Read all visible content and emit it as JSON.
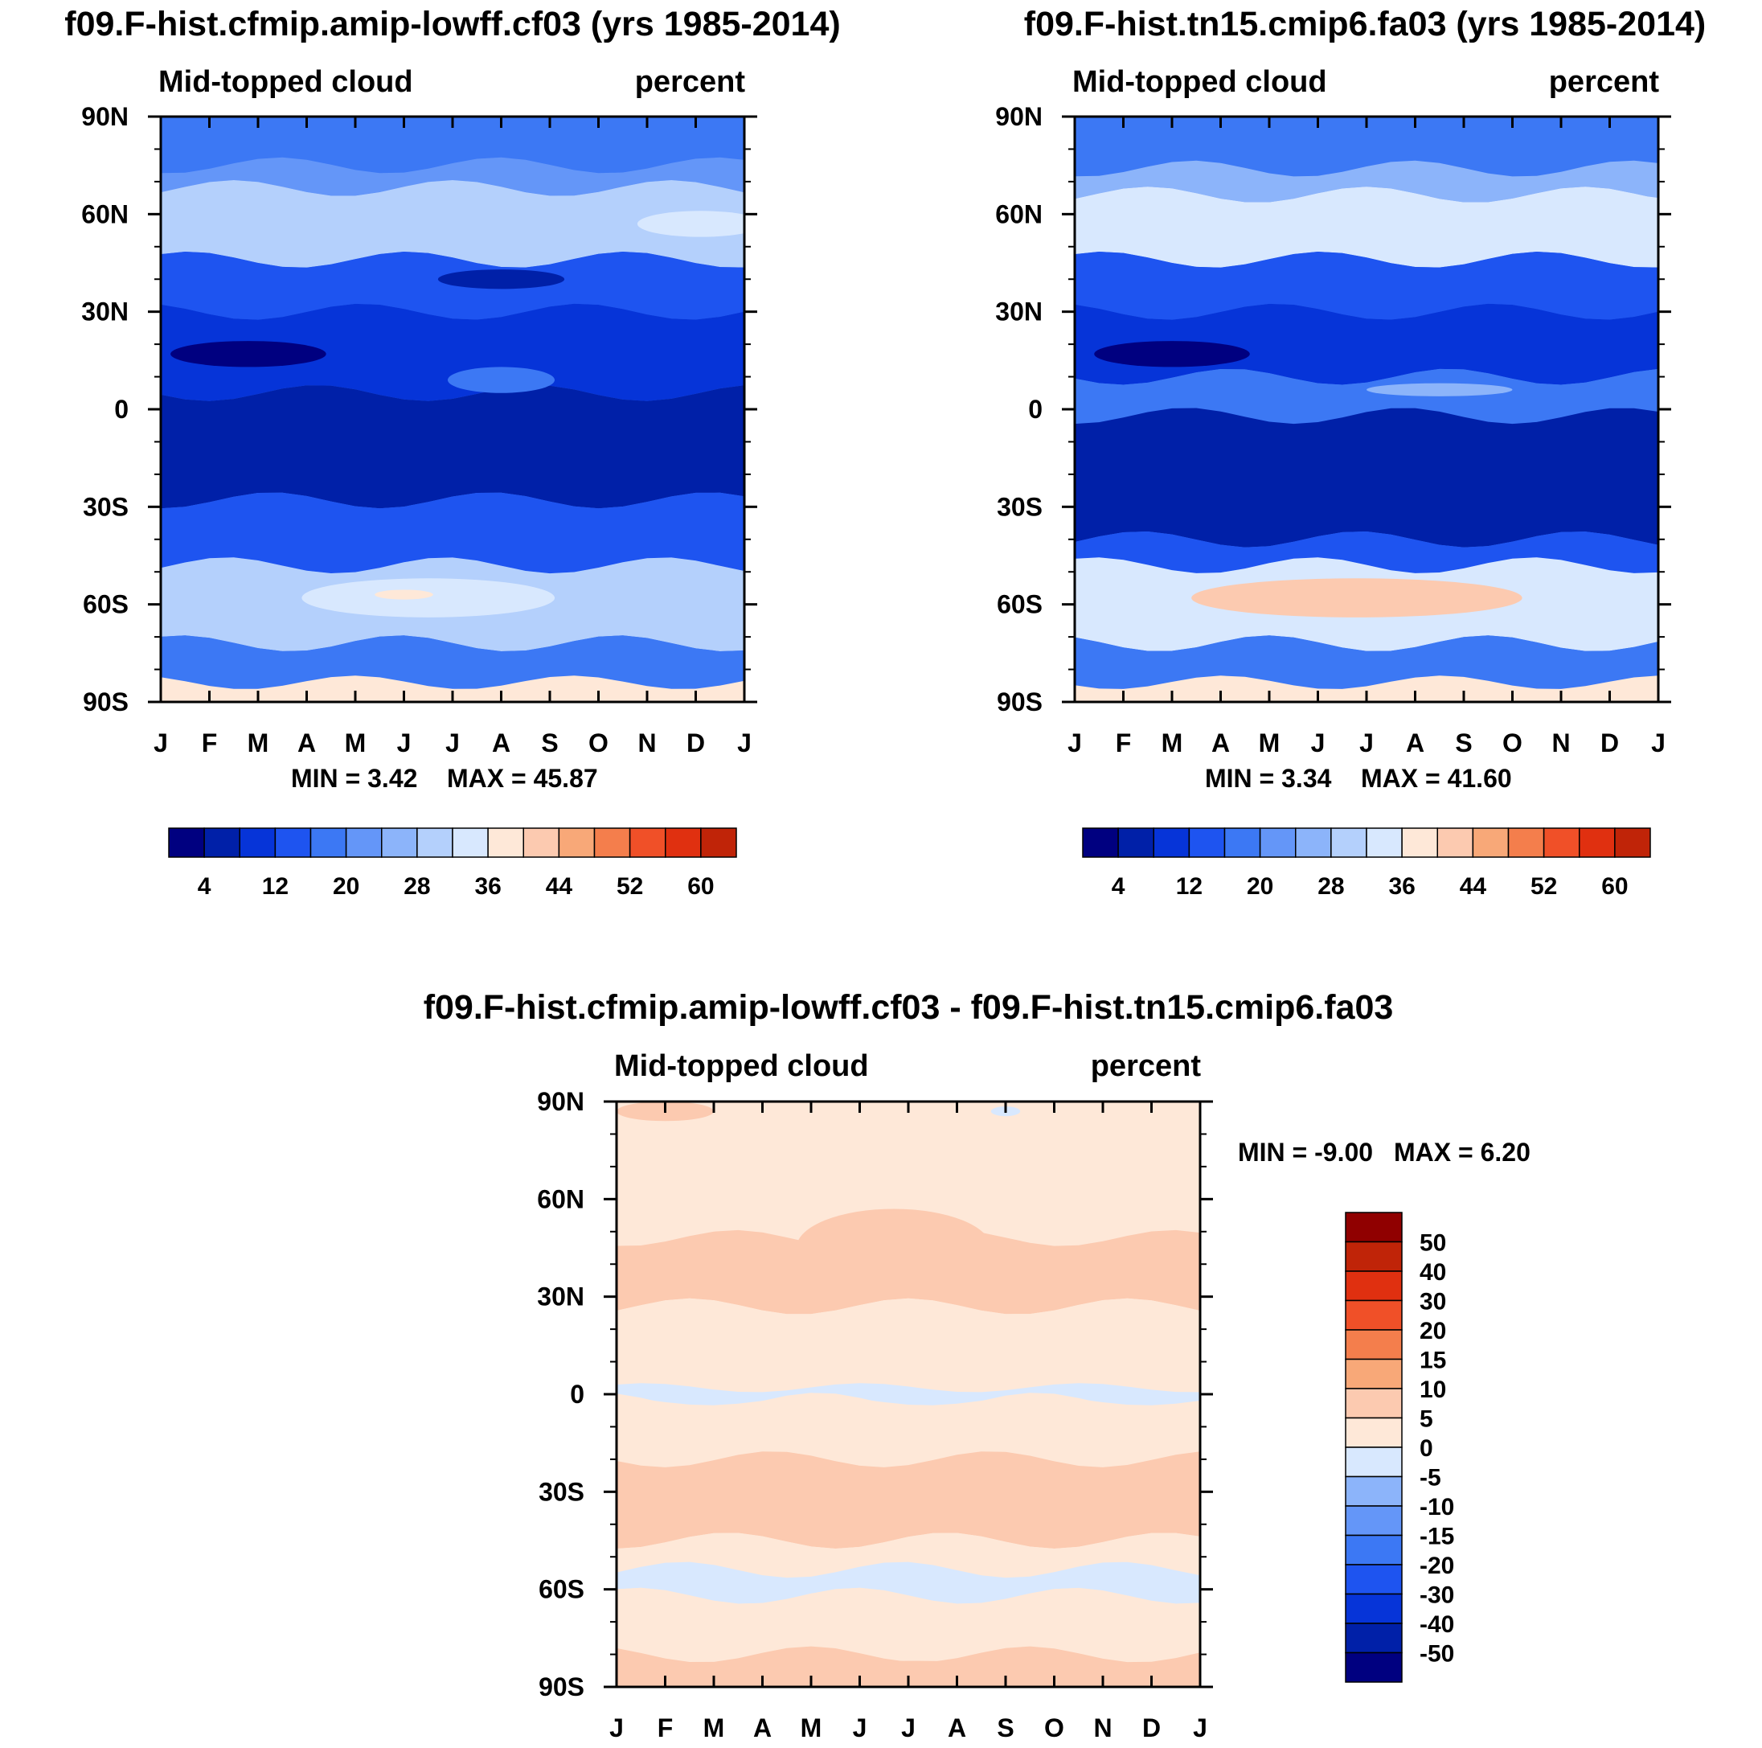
{
  "colors": {
    "cf_levels": [
      "#000080",
      "#0020a8",
      "#0634d8",
      "#1e54f0",
      "#3c78f4",
      "#6496f8",
      "#8cb4fa",
      "#b4d0fc",
      "#d8e8fe",
      "#fee8d8",
      "#fccab0",
      "#f8a878",
      "#f47e4c",
      "#f05028",
      "#e03010",
      "#c02408",
      "#900000"
    ]
  },
  "chart_data": [
    {
      "type": "heatmap",
      "title": "f09.F-hist.cfmip.amip-lowff.cf03 (yrs 1985-2014)",
      "left_label": "Mid-topped cloud",
      "right_label": "percent",
      "x_tick_labels": [
        "J",
        "F",
        "M",
        "A",
        "M",
        "J",
        "J",
        "A",
        "S",
        "O",
        "N",
        "D",
        "J"
      ],
      "y_tick_labels": [
        "90N",
        "60N",
        "30N",
        "0",
        "30S",
        "60S",
        "90S"
      ],
      "min_label": "MIN =   3.42",
      "max_label": "MAX =  45.87",
      "colorbar_labels": [
        "4",
        "12",
        "20",
        "28",
        "36",
        "44",
        "52",
        "60"
      ],
      "bands": [
        {
          "lat": [
            90,
            75
          ],
          "level": 4
        },
        {
          "lat": [
            75,
            68
          ],
          "level": 5
        },
        {
          "lat": [
            68,
            46
          ],
          "level": 7
        },
        {
          "lat": [
            46,
            30
          ],
          "level": 3
        },
        {
          "lat": [
            30,
            5
          ],
          "level": 2
        },
        {
          "lat": [
            5,
            -28
          ],
          "level": 1
        },
        {
          "lat": [
            -28,
            -48
          ],
          "level": 3
        },
        {
          "lat": [
            -48,
            -72
          ],
          "level": 7
        },
        {
          "lat": [
            -72,
            -84
          ],
          "level": 4
        },
        {
          "lat": [
            -84,
            -90
          ],
          "level": 9
        }
      ],
      "blobs": [
        {
          "lat": 17,
          "month": 1.8,
          "dlat": 4,
          "dmonth": 1.6,
          "level": 0
        },
        {
          "lat": 40,
          "month": 7.0,
          "dlat": 3,
          "dmonth": 1.3,
          "level": 1
        },
        {
          "lat": 9,
          "month": 7.0,
          "dlat": 4,
          "dmonth": 1.1,
          "level": 4
        },
        {
          "lat": -58,
          "month": 5.5,
          "dlat": 6,
          "dmonth": 2.6,
          "level": 8
        },
        {
          "lat": -57,
          "month": 5.0,
          "dlat": 1.5,
          "dmonth": 0.6,
          "level": 9
        },
        {
          "lat": 57,
          "month": 11.1,
          "dlat": 4,
          "dmonth": 1.3,
          "level": 8
        }
      ]
    },
    {
      "type": "heatmap",
      "title": "f09.F-hist.tn15.cmip6.fa03 (yrs 1985-2014)",
      "left_label": "Mid-topped cloud",
      "right_label": "percent",
      "x_tick_labels": [
        "J",
        "F",
        "M",
        "A",
        "M",
        "J",
        "J",
        "A",
        "S",
        "O",
        "N",
        "D",
        "J"
      ],
      "y_tick_labels": [
        "90N",
        "60N",
        "30N",
        "0",
        "30S",
        "60S",
        "90S"
      ],
      "min_label": "MIN =   3.34",
      "max_label": "MAX =  41.60",
      "colorbar_labels": [
        "4",
        "12",
        "20",
        "28",
        "36",
        "44",
        "52",
        "60"
      ],
      "bands": [
        {
          "lat": [
            90,
            74
          ],
          "level": 4
        },
        {
          "lat": [
            74,
            66
          ],
          "level": 6
        },
        {
          "lat": [
            66,
            46
          ],
          "level": 8
        },
        {
          "lat": [
            46,
            30
          ],
          "level": 3
        },
        {
          "lat": [
            30,
            10
          ],
          "level": 2
        },
        {
          "lat": [
            10,
            -2
          ],
          "level": 4
        },
        {
          "lat": [
            -2,
            -40
          ],
          "level": 1
        },
        {
          "lat": [
            -40,
            -48
          ],
          "level": 3
        },
        {
          "lat": [
            -48,
            -72
          ],
          "level": 8
        },
        {
          "lat": [
            -72,
            -84
          ],
          "level": 4
        },
        {
          "lat": [
            -84,
            -90
          ],
          "level": 9
        }
      ],
      "blobs": [
        {
          "lat": 17,
          "month": 2.0,
          "dlat": 4,
          "dmonth": 1.6,
          "level": 0
        },
        {
          "lat": -58,
          "month": 5.8,
          "dlat": 6,
          "dmonth": 3.4,
          "level": 10
        },
        {
          "lat": 60,
          "month": 11.0,
          "dlat": 6,
          "dmonth": 1.8,
          "level": 8
        },
        {
          "lat": 6,
          "month": 7.5,
          "dlat": 2,
          "dmonth": 1.5,
          "level": 6
        }
      ]
    },
    {
      "type": "heatmap",
      "title": "f09.F-hist.cfmip.amip-lowff.cf03 - f09.F-hist.tn15.cmip6.fa03",
      "left_label": "Mid-topped cloud",
      "right_label": "percent",
      "x_tick_labels": [
        "J",
        "F",
        "M",
        "A",
        "M",
        "J",
        "J",
        "A",
        "S",
        "O",
        "N",
        "D",
        "J"
      ],
      "y_tick_labels": [
        "90N",
        "60N",
        "30N",
        "0",
        "30S",
        "60S",
        "90S"
      ],
      "min_label": "MIN =  -9.00",
      "max_label": "MAX =    6.20",
      "colorbar_labels": [
        "50",
        "40",
        "30",
        "20",
        "15",
        "10",
        "5",
        "0",
        "-5",
        "-10",
        "-15",
        "-20",
        "-30",
        "-40",
        "-50"
      ],
      "bands": [
        {
          "lat": [
            90,
            48
          ],
          "level": 8
        },
        {
          "lat": [
            48,
            27
          ],
          "level": 9
        },
        {
          "lat": [
            27,
            2
          ],
          "level": 8
        },
        {
          "lat": [
            2,
            -2
          ],
          "level": 7
        },
        {
          "lat": [
            -2,
            -20
          ],
          "level": 8
        },
        {
          "lat": [
            -20,
            -45
          ],
          "level": 9
        },
        {
          "lat": [
            -45,
            -54
          ],
          "level": 8
        },
        {
          "lat": [
            -54,
            -62
          ],
          "level": 7
        },
        {
          "lat": [
            -62,
            -80
          ],
          "level": 8
        },
        {
          "lat": [
            -80,
            -90
          ],
          "level": 9
        }
      ],
      "blobs": [
        {
          "lat": 87,
          "month": 1.0,
          "dlat": 3,
          "dmonth": 1.0,
          "level": 9
        },
        {
          "lat": 45,
          "month": 5.7,
          "dlat": 12,
          "dmonth": 2.0,
          "level": 9
        },
        {
          "lat": -85,
          "month": 6.0,
          "dlat": 3,
          "dmonth": 3.0,
          "level": 9
        },
        {
          "lat": 87,
          "month": 8.0,
          "dlat": 1.5,
          "dmonth": 0.3,
          "level": 7
        }
      ]
    }
  ]
}
